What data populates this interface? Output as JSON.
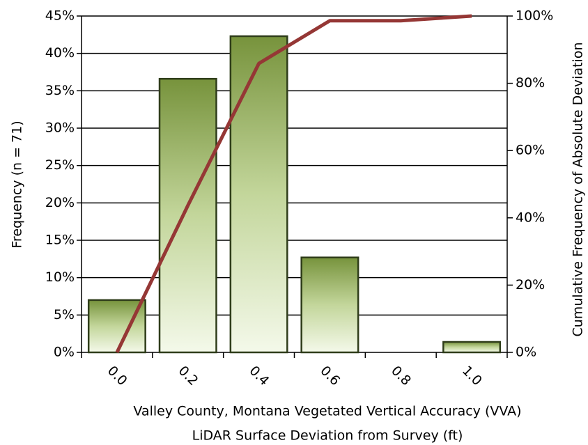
{
  "chart_data": {
    "type": "bar",
    "y_label": "Frequency (n = 71)",
    "y2_label": "Cumulative Frequency of Absolute Deviation",
    "x_label": [
      "Valley County, Montana Vegetated Vertical Accuracy (VVA)",
      "LiDAR Surface Deviation from Survey (ft)"
    ],
    "categories": [
      "0.0",
      "0.2",
      "0.4",
      "0.6",
      "0.8",
      "1.0"
    ],
    "series": [
      {
        "type": "bar",
        "color": "#77933c",
        "values": [
          7.0,
          36.6,
          42.3,
          12.7,
          0,
          1.4
        ]
      },
      {
        "type": "line",
        "axis": "y2",
        "color": "#953735",
        "values": [
          0,
          43.7,
          85.9,
          98.6,
          98.6,
          100
        ]
      }
    ],
    "ylim": [
      0,
      45
    ],
    "yticks": [
      {
        "value": 0,
        "label": "0%"
      },
      {
        "value": 5,
        "label": "5%"
      },
      {
        "value": 10,
        "label": "10%"
      },
      {
        "value": 15,
        "label": "15%"
      },
      {
        "value": 20,
        "label": "20%"
      },
      {
        "value": 25,
        "label": "25%"
      },
      {
        "value": 30,
        "label": "30%"
      },
      {
        "value": 35,
        "label": "35%"
      },
      {
        "value": 40,
        "label": "40%"
      },
      {
        "value": 45,
        "label": "45%"
      }
    ],
    "y2lim": [
      0,
      100
    ],
    "y2ticks": [
      {
        "value": 0,
        "label": "0%"
      },
      {
        "value": 20,
        "label": "20%"
      },
      {
        "value": 40,
        "label": "40%"
      },
      {
        "value": 60,
        "label": "60%"
      },
      {
        "value": 80,
        "label": "80%"
      },
      {
        "value": 100,
        "label": "100%"
      }
    ],
    "grid": true
  }
}
